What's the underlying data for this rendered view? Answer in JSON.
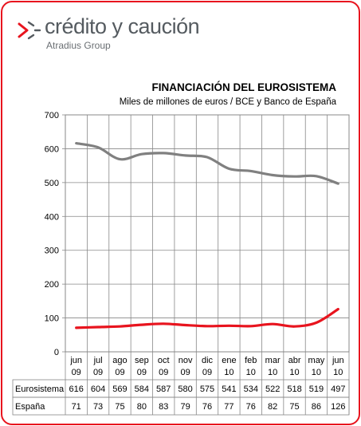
{
  "brand": {
    "name": "crédito y caución",
    "sub": "Atradius Group",
    "colors": {
      "red": "#e8141e",
      "gray": "#555b60"
    }
  },
  "chart_data": {
    "type": "line",
    "title": "FINANCIACIÓN DEL EUROSISTEMA",
    "subtitle": "Miles de millones de euros / BCE y Banco de España",
    "categories": [
      [
        "jun",
        "09"
      ],
      [
        "jul",
        "09"
      ],
      [
        "ago",
        "09"
      ],
      [
        "sep",
        "09"
      ],
      [
        "oct",
        "09"
      ],
      [
        "nov",
        "09"
      ],
      [
        "dic",
        "09"
      ],
      [
        "ene",
        "10"
      ],
      [
        "feb",
        "10"
      ],
      [
        "mar",
        "10"
      ],
      [
        "abr",
        "10"
      ],
      [
        "may",
        "10"
      ],
      [
        "jun",
        "10"
      ]
    ],
    "series": [
      {
        "name": "Eurosistema",
        "values": [
          616,
          604,
          569,
          584,
          587,
          580,
          575,
          541,
          534,
          522,
          518,
          519,
          497
        ],
        "color": "#808080"
      },
      {
        "name": "España",
        "values": [
          71,
          73,
          75,
          80,
          83,
          79,
          76,
          77,
          76,
          82,
          75,
          86,
          126
        ],
        "color": "#e8141e"
      }
    ],
    "ylim": [
      0,
      700
    ],
    "yticks": [
      0,
      100,
      200,
      300,
      400,
      500,
      600,
      700
    ],
    "grid": true,
    "legend": "data-table"
  }
}
